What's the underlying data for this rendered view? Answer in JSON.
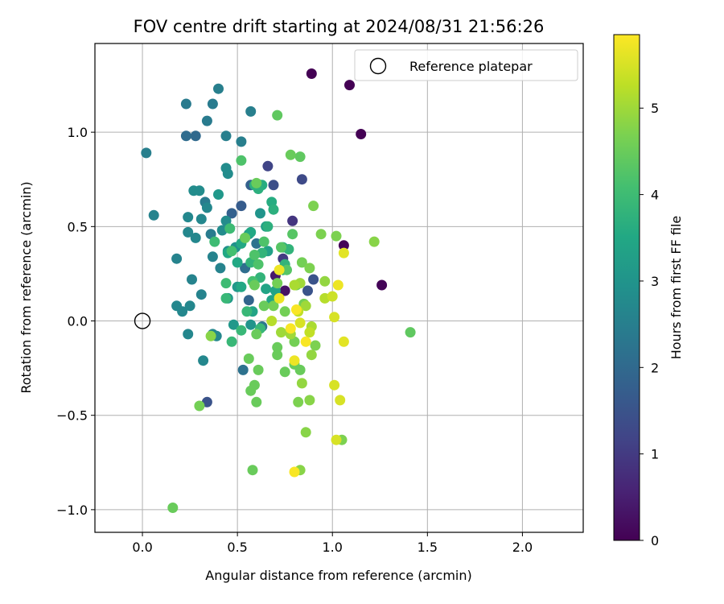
{
  "chart_data": {
    "type": "scatter",
    "title": "FOV centre drift starting at 2024/08/31 21:56:26",
    "xlabel": "Angular distance from reference (arcmin)",
    "ylabel": "Rotation from reference (arcmin)",
    "xlim": [
      -0.25,
      2.32
    ],
    "ylim": [
      -1.12,
      1.47
    ],
    "xticks": [
      0.0,
      0.5,
      1.0,
      1.5,
      2.0
    ],
    "xtick_labels": [
      "0.0",
      "0.5",
      "1.0",
      "1.5",
      "2.0"
    ],
    "yticks": [
      -1.0,
      -0.5,
      0.0,
      0.5,
      1.0
    ],
    "ytick_labels": [
      "−1.0",
      "−0.5",
      "0.0",
      "0.5",
      "1.0"
    ],
    "grid": true,
    "legend": {
      "position": "top-right",
      "label": "Reference platepar"
    },
    "reference_point": {
      "x": 0.0,
      "y": 0.0
    },
    "colorbar": {
      "label": "Hours from first FF file",
      "min": 0,
      "max": 5.85,
      "ticks": [
        0,
        1,
        2,
        3,
        4,
        5
      ],
      "tick_labels": [
        "0",
        "1",
        "2",
        "3",
        "4",
        "5"
      ],
      "colormap": "viridis"
    },
    "marker_color_note": "point color = hours value mapped through viridis",
    "points": [
      {
        "x": 0.89,
        "y": 1.31,
        "t": 0.0
      },
      {
        "x": 1.09,
        "y": 1.25,
        "t": 0.0
      },
      {
        "x": 1.15,
        "y": 0.99,
        "t": 0.0
      },
      {
        "x": 1.06,
        "y": 0.4,
        "t": 0.05
      },
      {
        "x": 1.26,
        "y": 0.19,
        "t": 0.05
      },
      {
        "x": 0.75,
        "y": 0.16,
        "t": 0.3
      },
      {
        "x": 0.7,
        "y": 0.24,
        "t": 0.4
      },
      {
        "x": 0.79,
        "y": 0.53,
        "t": 0.9
      },
      {
        "x": 0.74,
        "y": 0.33,
        "t": 1.0
      },
      {
        "x": 0.66,
        "y": 0.82,
        "t": 1.2
      },
      {
        "x": 0.84,
        "y": 0.75,
        "t": 1.3
      },
      {
        "x": 0.69,
        "y": 0.72,
        "t": 1.4
      },
      {
        "x": 0.34,
        "y": -0.43,
        "t": 1.5
      },
      {
        "x": 0.9,
        "y": 0.22,
        "t": 1.5
      },
      {
        "x": 0.87,
        "y": 0.16,
        "t": 1.5
      },
      {
        "x": 0.52,
        "y": 0.61,
        "t": 1.7
      },
      {
        "x": 0.47,
        "y": 0.57,
        "t": 1.8
      },
      {
        "x": 0.57,
        "y": 0.72,
        "t": 1.8
      },
      {
        "x": 0.28,
        "y": 0.98,
        "t": 2.0
      },
      {
        "x": 0.23,
        "y": 0.98,
        "t": 2.05
      },
      {
        "x": 0.56,
        "y": 0.11,
        "t": 1.9
      },
      {
        "x": 0.54,
        "y": 0.28,
        "t": 2.1
      },
      {
        "x": 0.53,
        "y": -0.26,
        "t": 2.2
      },
      {
        "x": 0.6,
        "y": 0.41,
        "t": 2.2
      },
      {
        "x": 0.63,
        "y": -0.03,
        "t": 2.3
      },
      {
        "x": 0.36,
        "y": 0.46,
        "t": 2.4
      },
      {
        "x": 0.33,
        "y": 0.63,
        "t": 2.4
      },
      {
        "x": 0.44,
        "y": 0.98,
        "t": 2.5
      },
      {
        "x": 0.52,
        "y": 0.95,
        "t": 2.5
      },
      {
        "x": 0.34,
        "y": 1.06,
        "t": 2.4
      },
      {
        "x": 0.57,
        "y": 1.11,
        "t": 2.5
      },
      {
        "x": 0.37,
        "y": 1.15,
        "t": 2.4
      },
      {
        "x": 0.23,
        "y": 1.15,
        "t": 2.4
      },
      {
        "x": 0.4,
        "y": 1.23,
        "t": 2.5
      },
      {
        "x": 0.02,
        "y": 0.89,
        "t": 2.5
      },
      {
        "x": 0.06,
        "y": 0.56,
        "t": 2.6
      },
      {
        "x": 0.18,
        "y": 0.33,
        "t": 2.6
      },
      {
        "x": 0.37,
        "y": 0.34,
        "t": 2.6
      },
      {
        "x": 0.41,
        "y": 0.28,
        "t": 2.6
      },
      {
        "x": 0.26,
        "y": 0.22,
        "t": 2.6
      },
      {
        "x": 0.31,
        "y": 0.14,
        "t": 2.6
      },
      {
        "x": 0.18,
        "y": 0.08,
        "t": 2.7
      },
      {
        "x": 0.21,
        "y": 0.05,
        "t": 2.7
      },
      {
        "x": 0.25,
        "y": 0.08,
        "t": 2.7
      },
      {
        "x": 0.24,
        "y": -0.07,
        "t": 2.7
      },
      {
        "x": 0.37,
        "y": -0.07,
        "t": 2.7
      },
      {
        "x": 0.39,
        "y": -0.08,
        "t": 2.7
      },
      {
        "x": 0.32,
        "y": -0.21,
        "t": 2.7
      },
      {
        "x": 0.24,
        "y": 0.47,
        "t": 2.7
      },
      {
        "x": 0.28,
        "y": 0.44,
        "t": 2.7
      },
      {
        "x": 0.24,
        "y": 0.55,
        "t": 2.7
      },
      {
        "x": 0.31,
        "y": 0.54,
        "t": 2.7
      },
      {
        "x": 0.34,
        "y": 0.6,
        "t": 2.7
      },
      {
        "x": 0.27,
        "y": 0.69,
        "t": 2.8
      },
      {
        "x": 0.3,
        "y": 0.69,
        "t": 2.8
      },
      {
        "x": 0.44,
        "y": 0.53,
        "t": 2.8
      },
      {
        "x": 0.46,
        "y": 0.49,
        "t": 2.8
      },
      {
        "x": 0.42,
        "y": 0.48,
        "t": 2.8
      },
      {
        "x": 0.44,
        "y": 0.81,
        "t": 2.8
      },
      {
        "x": 0.45,
        "y": 0.78,
        "t": 2.8
      },
      {
        "x": 0.49,
        "y": 0.39,
        "t": 2.9
      },
      {
        "x": 0.45,
        "y": 0.37,
        "t": 2.9
      },
      {
        "x": 0.56,
        "y": 0.46,
        "t": 3.0
      },
      {
        "x": 0.62,
        "y": 0.57,
        "t": 3.0
      },
      {
        "x": 0.57,
        "y": -0.02,
        "t": 3.0
      },
      {
        "x": 0.48,
        "y": -0.02,
        "t": 3.1
      },
      {
        "x": 0.5,
        "y": 0.18,
        "t": 3.1
      },
      {
        "x": 0.45,
        "y": 0.12,
        "t": 3.1
      },
      {
        "x": 0.4,
        "y": 0.67,
        "t": 3.1
      },
      {
        "x": 0.62,
        "y": 0.72,
        "t": 3.2
      },
      {
        "x": 0.65,
        "y": 0.5,
        "t": 3.3
      },
      {
        "x": 0.66,
        "y": 0.37,
        "t": 3.3
      },
      {
        "x": 0.65,
        "y": 0.17,
        "t": 3.4
      },
      {
        "x": 0.7,
        "y": 0.16,
        "t": 3.4
      },
      {
        "x": 0.68,
        "y": 0.11,
        "t": 3.4
      },
      {
        "x": 0.58,
        "y": 0.05,
        "t": 3.4
      },
      {
        "x": 0.52,
        "y": 0.18,
        "t": 3.5
      },
      {
        "x": 0.5,
        "y": 0.31,
        "t": 3.5
      },
      {
        "x": 0.45,
        "y": 0.36,
        "t": 3.5
      },
      {
        "x": 0.52,
        "y": 0.41,
        "t": 3.5
      },
      {
        "x": 0.57,
        "y": 0.47,
        "t": 3.5
      },
      {
        "x": 0.68,
        "y": 0.63,
        "t": 3.6
      },
      {
        "x": 0.63,
        "y": 0.72,
        "t": 3.6
      },
      {
        "x": 0.59,
        "y": 0.72,
        "t": 3.7
      },
      {
        "x": 0.69,
        "y": 0.59,
        "t": 3.7
      },
      {
        "x": 0.61,
        "y": 0.7,
        "t": 3.7
      },
      {
        "x": 0.66,
        "y": 0.5,
        "t": 3.7
      },
      {
        "x": 0.74,
        "y": 0.39,
        "t": 3.7
      },
      {
        "x": 0.77,
        "y": 0.38,
        "t": 3.8
      },
      {
        "x": 0.74,
        "y": 0.27,
        "t": 3.8
      },
      {
        "x": 0.75,
        "y": 0.3,
        "t": 3.8
      },
      {
        "x": 0.63,
        "y": 0.36,
        "t": 3.8
      },
      {
        "x": 0.57,
        "y": 0.31,
        "t": 3.8
      },
      {
        "x": 0.62,
        "y": 0.23,
        "t": 3.8
      },
      {
        "x": 0.62,
        "y": -0.04,
        "t": 3.9
      },
      {
        "x": 0.55,
        "y": 0.05,
        "t": 3.9
      },
      {
        "x": 0.52,
        "y": -0.05,
        "t": 3.9
      },
      {
        "x": 0.47,
        "y": -0.11,
        "t": 3.9
      },
      {
        "x": 0.44,
        "y": 0.12,
        "t": 3.9
      },
      {
        "x": 0.44,
        "y": 0.2,
        "t": 4.0
      },
      {
        "x": 0.38,
        "y": 0.42,
        "t": 4.0
      },
      {
        "x": 0.46,
        "y": 0.49,
        "t": 4.0
      },
      {
        "x": 0.47,
        "y": 0.37,
        "t": 4.1
      },
      {
        "x": 0.54,
        "y": 0.44,
        "t": 4.1
      },
      {
        "x": 0.58,
        "y": 0.21,
        "t": 4.1
      },
      {
        "x": 0.59,
        "y": 0.35,
        "t": 4.2
      },
      {
        "x": 0.64,
        "y": 0.42,
        "t": 4.2
      },
      {
        "x": 0.61,
        "y": 0.3,
        "t": 4.2
      },
      {
        "x": 0.52,
        "y": 0.85,
        "t": 4.2
      },
      {
        "x": 0.73,
        "y": 0.39,
        "t": 4.3
      },
      {
        "x": 0.76,
        "y": 0.27,
        "t": 4.3
      },
      {
        "x": 0.79,
        "y": 0.46,
        "t": 4.3
      },
      {
        "x": 0.71,
        "y": 1.09,
        "t": 4.4
      },
      {
        "x": 0.83,
        "y": 0.87,
        "t": 4.4
      },
      {
        "x": 0.78,
        "y": 0.88,
        "t": 4.5
      },
      {
        "x": 0.6,
        "y": 0.73,
        "t": 4.5
      },
      {
        "x": 0.54,
        "y": 0.44,
        "t": 4.5
      },
      {
        "x": 0.59,
        "y": 0.19,
        "t": 4.5
      },
      {
        "x": 0.64,
        "y": 0.08,
        "t": 4.5
      },
      {
        "x": 0.6,
        "y": -0.07,
        "t": 4.5
      },
      {
        "x": 0.56,
        "y": -0.2,
        "t": 4.5
      },
      {
        "x": 0.57,
        "y": -0.37,
        "t": 4.5
      },
      {
        "x": 0.59,
        "y": -0.34,
        "t": 4.5
      },
      {
        "x": 0.6,
        "y": -0.43,
        "t": 4.5
      },
      {
        "x": 0.61,
        "y": -0.26,
        "t": 4.5
      },
      {
        "x": 0.71,
        "y": -0.14,
        "t": 4.5
      },
      {
        "x": 0.71,
        "y": -0.18,
        "t": 4.5
      },
      {
        "x": 0.75,
        "y": -0.27,
        "t": 4.5
      },
      {
        "x": 0.8,
        "y": -0.23,
        "t": 4.5
      },
      {
        "x": 0.83,
        "y": -0.26,
        "t": 4.5
      },
      {
        "x": 0.8,
        "y": -0.11,
        "t": 4.6
      },
      {
        "x": 0.75,
        "y": 0.05,
        "t": 4.6
      },
      {
        "x": 0.69,
        "y": 0.08,
        "t": 4.6
      },
      {
        "x": 0.71,
        "y": 0.2,
        "t": 4.6
      },
      {
        "x": 0.81,
        "y": 0.19,
        "t": 4.6
      },
      {
        "x": 0.84,
        "y": 0.31,
        "t": 4.6
      },
      {
        "x": 0.85,
        "y": 0.09,
        "t": 4.6
      },
      {
        "x": 0.88,
        "y": 0.28,
        "t": 4.7
      },
      {
        "x": 0.91,
        "y": -0.13,
        "t": 4.7
      },
      {
        "x": 0.94,
        "y": 0.46,
        "t": 4.7
      },
      {
        "x": 0.9,
        "y": 0.61,
        "t": 4.7
      },
      {
        "x": 1.02,
        "y": 0.45,
        "t": 4.7
      },
      {
        "x": 1.22,
        "y": 0.42,
        "t": 4.8
      },
      {
        "x": 1.41,
        "y": -0.06,
        "t": 4.4
      },
      {
        "x": 0.82,
        "y": -0.43,
        "t": 4.7
      },
      {
        "x": 0.88,
        "y": -0.42,
        "t": 4.8
      },
      {
        "x": 0.86,
        "y": -0.59,
        "t": 4.8
      },
      {
        "x": 0.58,
        "y": -0.79,
        "t": 4.5
      },
      {
        "x": 0.83,
        "y": -0.79,
        "t": 4.8
      },
      {
        "x": 0.16,
        "y": -0.99,
        "t": 4.5
      },
      {
        "x": 0.3,
        "y": -0.45,
        "t": 4.6
      },
      {
        "x": 0.36,
        "y": -0.08,
        "t": 4.8
      },
      {
        "x": 1.05,
        "y": -0.63,
        "t": 4.7
      },
      {
        "x": 0.96,
        "y": 0.21,
        "t": 4.9
      },
      {
        "x": 0.84,
        "y": -0.33,
        "t": 4.9
      },
      {
        "x": 0.89,
        "y": -0.18,
        "t": 4.9
      },
      {
        "x": 0.73,
        "y": -0.06,
        "t": 5.0
      },
      {
        "x": 0.78,
        "y": -0.07,
        "t": 5.0
      },
      {
        "x": 0.86,
        "y": 0.08,
        "t": 5.0
      },
      {
        "x": 0.83,
        "y": 0.2,
        "t": 5.0
      },
      {
        "x": 0.8,
        "y": 0.19,
        "t": 5.1
      },
      {
        "x": 0.89,
        "y": -0.03,
        "t": 5.1
      },
      {
        "x": 0.96,
        "y": 0.12,
        "t": 5.2
      },
      {
        "x": 0.68,
        "y": 0.0,
        "t": 5.2
      },
      {
        "x": 0.82,
        "y": 0.05,
        "t": 5.3
      },
      {
        "x": 0.88,
        "y": -0.06,
        "t": 5.3
      },
      {
        "x": 1.0,
        "y": 0.13,
        "t": 5.4
      },
      {
        "x": 0.83,
        "y": -0.01,
        "t": 5.5
      },
      {
        "x": 1.02,
        "y": -0.63,
        "t": 5.5
      },
      {
        "x": 1.04,
        "y": -0.42,
        "t": 5.5
      },
      {
        "x": 1.01,
        "y": -0.34,
        "t": 5.5
      },
      {
        "x": 1.01,
        "y": 0.02,
        "t": 5.5
      },
      {
        "x": 1.06,
        "y": 0.36,
        "t": 5.6
      },
      {
        "x": 1.06,
        "y": -0.11,
        "t": 5.6
      },
      {
        "x": 1.03,
        "y": 0.19,
        "t": 5.7
      },
      {
        "x": 0.72,
        "y": 0.27,
        "t": 5.7
      },
      {
        "x": 0.72,
        "y": 0.12,
        "t": 5.7
      },
      {
        "x": 0.8,
        "y": -0.21,
        "t": 5.7
      },
      {
        "x": 0.78,
        "y": -0.04,
        "t": 5.8
      },
      {
        "x": 0.86,
        "y": -0.11,
        "t": 5.8
      },
      {
        "x": 0.81,
        "y": 0.06,
        "t": 5.8
      },
      {
        "x": 0.8,
        "y": -0.8,
        "t": 5.8
      }
    ]
  }
}
